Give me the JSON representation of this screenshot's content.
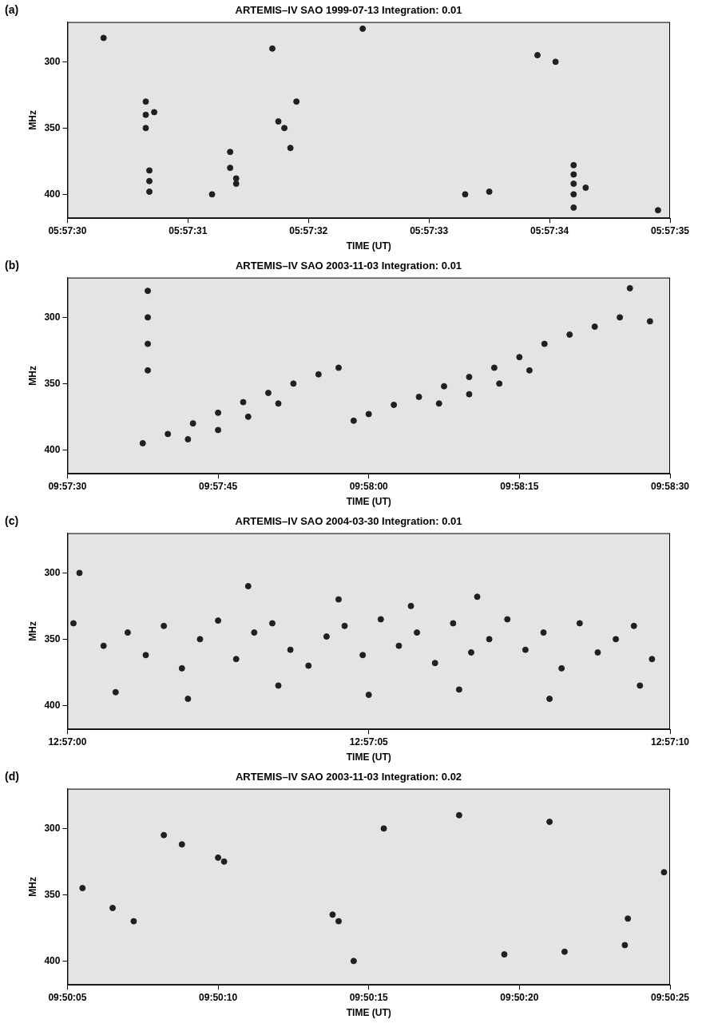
{
  "chart_data": [
    {
      "type": "scatter",
      "panel": "(a)",
      "title": "ARTEMIS–IV SAO 1999-07-13 Integration: 0.01",
      "x_label": "TIME (UT)",
      "y_label": "MHz",
      "xlim": [
        "05:57:30",
        "05:57:35"
      ],
      "xticks": [
        "05:57:30",
        "05:57:31",
        "05:57:32",
        "05:57:33",
        "05:57:34",
        "05:57:35"
      ],
      "ylim": [
        418,
        270
      ],
      "yticks": [
        300,
        350,
        400
      ],
      "grid": false,
      "color": "#202020",
      "marker": "circle",
      "x": [
        "05:57:30.65",
        "05:57:30.65",
        "05:57:30.65",
        "05:57:30.72",
        "05:57:30.68",
        "05:57:30.68",
        "05:57:30.68",
        "05:57:31.35",
        "05:57:31.35",
        "05:57:31.40",
        "05:57:31.40",
        "05:57:31.20",
        "05:57:31.75",
        "05:57:31.80",
        "05:57:31.85",
        "05:57:31.90",
        "05:57:31.70",
        "05:57:32.45",
        "05:57:33.30",
        "05:57:33.50",
        "05:57:34.20",
        "05:57:34.20",
        "05:57:34.20",
        "05:57:34.20",
        "05:57:34.20",
        "05:57:34.30",
        "05:57:34.90",
        "05:57:30.30",
        "05:57:33.90",
        "05:57:34.05"
      ],
      "values": [
        330,
        340,
        350,
        338,
        382,
        390,
        398,
        368,
        380,
        388,
        392,
        400,
        345,
        350,
        365,
        330,
        290,
        275,
        400,
        398,
        378,
        385,
        392,
        400,
        410,
        395,
        412,
        282,
        295,
        300
      ]
    },
    {
      "type": "scatter",
      "panel": "(b)",
      "title": "ARTEMIS–IV SAO 2003-11-03 Integration: 0.01",
      "x_label": "TIME (UT)",
      "y_label": "MHz",
      "xlim": [
        "09:57:30",
        "09:58:30"
      ],
      "xticks": [
        "09:57:30",
        "09:57:45",
        "09:58:00",
        "09:58:15",
        "09:58:30"
      ],
      "ylim": [
        418,
        270
      ],
      "yticks": [
        300,
        350,
        400
      ],
      "grid": false,
      "color": "#202020",
      "marker": "circle",
      "x": [
        "09:57:37.5",
        "09:57:40",
        "09:57:42.5",
        "09:57:45",
        "09:57:47.5",
        "09:57:50",
        "09:57:52.5",
        "09:57:55",
        "09:57:57",
        "09:57:42",
        "09:57:45",
        "09:57:48",
        "09:57:51",
        "09:57:58.5",
        "09:58:00",
        "09:58:02.5",
        "09:58:05",
        "09:58:07.5",
        "09:58:10",
        "09:58:12.5",
        "09:58:15",
        "09:58:17.5",
        "09:58:20",
        "09:58:22.5",
        "09:58:25",
        "09:58:28",
        "09:58:07",
        "09:58:10",
        "09:58:13",
        "09:58:16",
        "09:58:26",
        "09:57:38",
        "09:57:38",
        "09:57:38",
        "09:57:38"
      ],
      "values": [
        395,
        388,
        380,
        372,
        364,
        357,
        350,
        343,
        338,
        392,
        385,
        375,
        365,
        378,
        373,
        366,
        360,
        352,
        345,
        338,
        330,
        320,
        313,
        307,
        300,
        303,
        365,
        358,
        350,
        340,
        278,
        280,
        300,
        320,
        340
      ]
    },
    {
      "type": "scatter",
      "panel": "(c)",
      "title": "ARTEMIS–IV SAO 2004-03-30 Integration: 0.01",
      "x_label": "TIME (UT)",
      "y_label": "MHz",
      "xlim": [
        "12:57:00",
        "12:57:10"
      ],
      "xticks": [
        "12:57:00",
        "12:57:05",
        "12:57:10"
      ],
      "ylim": [
        418,
        270
      ],
      "yticks": [
        300,
        350,
        400
      ],
      "grid": false,
      "color": "#202020",
      "marker": "circle",
      "x": [
        "12:57:00.2",
        "12:57:00.1",
        "12:57:00.6",
        "12:57:01.0",
        "12:57:01.3",
        "12:57:01.6",
        "12:57:01.9",
        "12:57:02.2",
        "12:57:02.5",
        "12:57:02.8",
        "12:57:03.1",
        "12:57:03.4",
        "12:57:03.7",
        "12:57:04.0",
        "12:57:04.3",
        "12:57:04.6",
        "12:57:04.9",
        "12:57:05.2",
        "12:57:05.5",
        "12:57:05.8",
        "12:57:06.1",
        "12:57:06.4",
        "12:57:06.7",
        "12:57:07.0",
        "12:57:07.3",
        "12:57:07.6",
        "12:57:07.9",
        "12:57:08.2",
        "12:57:08.5",
        "12:57:08.8",
        "12:57:09.1",
        "12:57:09.4",
        "12:57:09.7",
        "12:57:00.8",
        "12:57:02.0",
        "12:57:03.5",
        "12:57:05.0",
        "12:57:06.5",
        "12:57:08.0",
        "12:57:09.5",
        "12:57:04.5",
        "12:57:06.8",
        "12:57:03.0",
        "12:57:05.7"
      ],
      "values": [
        300,
        338,
        355,
        345,
        362,
        340,
        372,
        350,
        336,
        365,
        345,
        338,
        358,
        370,
        348,
        340,
        362,
        335,
        355,
        345,
        368,
        338,
        360,
        350,
        335,
        358,
        345,
        372,
        338,
        360,
        350,
        340,
        365,
        390,
        395,
        385,
        392,
        388,
        395,
        385,
        320,
        318,
        310,
        325
      ]
    },
    {
      "type": "scatter",
      "panel": "(d)",
      "title": "ARTEMIS–IV SAO 2003-11-03 Integration: 0.02",
      "x_label": "TIME (UT)",
      "y_label": "MHz",
      "xlim": [
        "09:50:05",
        "09:50:25"
      ],
      "xticks": [
        "09:50:05",
        "09:50:10",
        "09:50:15",
        "09:50:20",
        "09:50:25"
      ],
      "ylim": [
        418,
        270
      ],
      "yticks": [
        300,
        350,
        400
      ],
      "grid": false,
      "color": "#202020",
      "marker": "circle",
      "x": [
        "09:50:10.2",
        "09:50:10.0",
        "09:50:08.8",
        "09:50:08.2",
        "09:50:14.0",
        "09:50:13.8",
        "09:50:19.5",
        "09:50:21.5",
        "09:50:23.6",
        "09:50:23.5",
        "09:50:06.5",
        "09:50:05.5",
        "09:50:07.2",
        "09:50:15.5",
        "09:50:18.0",
        "09:50:21.0",
        "09:50:24.8",
        "09:50:14.5"
      ],
      "values": [
        325,
        322,
        312,
        305,
        370,
        365,
        395,
        393,
        368,
        388,
        360,
        345,
        370,
        300,
        290,
        295,
        333,
        400
      ]
    }
  ]
}
